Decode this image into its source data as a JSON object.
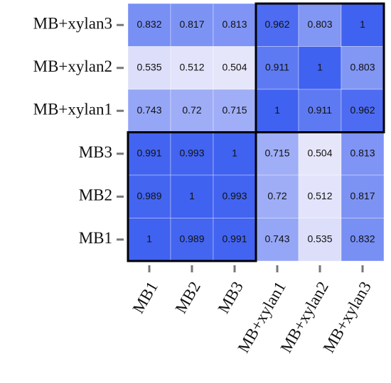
{
  "chart_data": {
    "type": "heatmap",
    "x_categories": [
      "MB1",
      "MB2",
      "MB3",
      "MB+xylan1",
      "MB+xylan2",
      "MB+xylan3"
    ],
    "y_categories": [
      "MB+xylan3",
      "MB+xylan2",
      "MB+xylan1",
      "MB3",
      "MB2",
      "MB1"
    ],
    "values": [
      [
        0.832,
        0.817,
        0.813,
        0.962,
        0.803,
        1
      ],
      [
        0.535,
        0.512,
        0.504,
        0.911,
        1,
        0.803
      ],
      [
        0.743,
        0.72,
        0.715,
        1,
        0.911,
        0.962
      ],
      [
        0.991,
        0.993,
        1,
        0.715,
        0.504,
        0.813
      ],
      [
        0.989,
        1,
        0.993,
        0.72,
        0.512,
        0.817
      ],
      [
        1,
        0.989,
        0.991,
        0.743,
        0.535,
        0.832
      ]
    ],
    "colors": [
      "#e6e6fb",
      "#4062f0"
    ]
  }
}
